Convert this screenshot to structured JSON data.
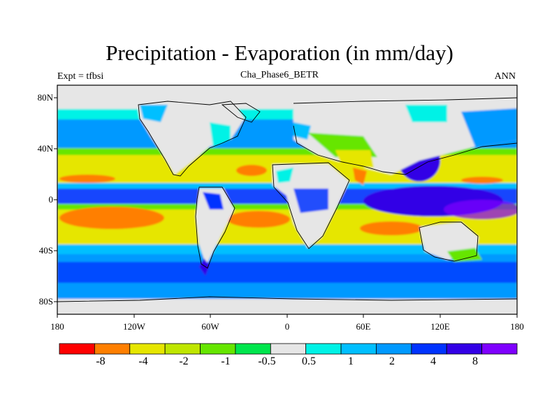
{
  "title": "Precipitation - Evaporation (in mm/day)",
  "experiment": "Expt = tfbsi",
  "case": "Cha_Phase6_BETR",
  "season": "ANN",
  "lat_ticks": [
    "80N",
    "40N",
    "0",
    "40S",
    "80S"
  ],
  "lon_ticks": [
    "180",
    "120W",
    "60W",
    "0",
    "60E",
    "120E",
    "180"
  ],
  "colorbar": {
    "colors": [
      "#ff0000",
      "#ff7f00",
      "#e6e600",
      "#bfe600",
      "#66e600",
      "#00e64d",
      "#e6e6e6",
      "#00f2e6",
      "#00bfff",
      "#0099ff",
      "#0033ff",
      "#3300e6",
      "#7f00ff"
    ],
    "labels": [
      "-8",
      "-4",
      "-2",
      "-1",
      "-0.5",
      "0.5",
      "1",
      "2",
      "4",
      "8"
    ]
  }
}
